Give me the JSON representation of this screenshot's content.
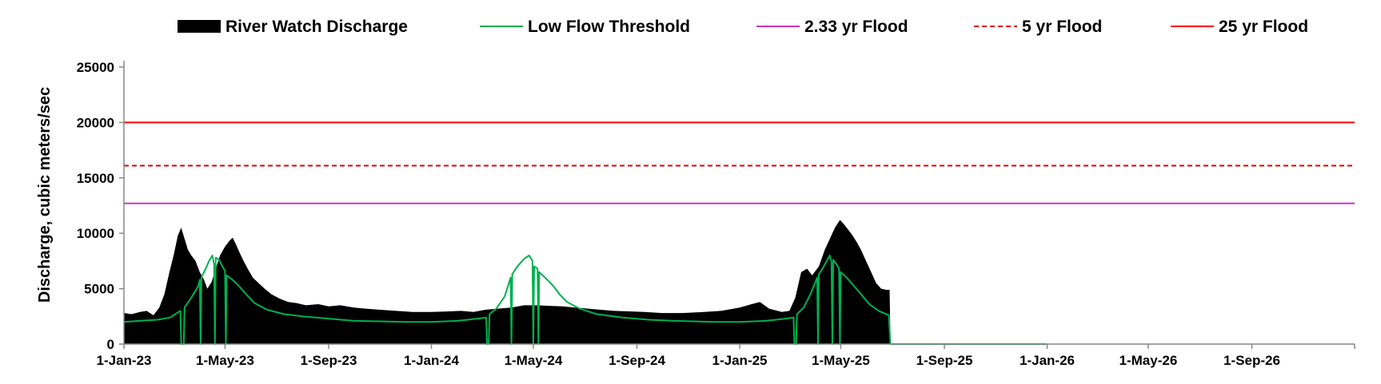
{
  "chart_data": {
    "type": "area",
    "title": "",
    "xlabel": "",
    "ylabel": "Discharge, cubic meters/sec",
    "ylim": [
      0,
      25000
    ],
    "yticks": [
      0,
      5000,
      10000,
      15000,
      20000,
      25000
    ],
    "xlim": [
      "2023-01-01",
      "2027-01-01"
    ],
    "xticks": [
      {
        "date": "2023-01-01",
        "label": "1-Jan-23"
      },
      {
        "date": "2023-05-01",
        "label": "1-May-23"
      },
      {
        "date": "2023-09-01",
        "label": "1-Sep-23"
      },
      {
        "date": "2024-01-01",
        "label": "1-Jan-24"
      },
      {
        "date": "2024-05-01",
        "label": "1-May-24"
      },
      {
        "date": "2024-09-01",
        "label": "1-Sep-24"
      },
      {
        "date": "2025-01-01",
        "label": "1-Jan-25"
      },
      {
        "date": "2025-05-01",
        "label": "1-May-25"
      },
      {
        "date": "2025-09-01",
        "label": "1-Sep-25"
      },
      {
        "date": "2026-01-01",
        "label": "1-Jan-26"
      },
      {
        "date": "2026-05-01",
        "label": "1-May-26"
      },
      {
        "date": "2026-09-01",
        "label": "1-Sep-26"
      }
    ],
    "grid": false,
    "legend_position": "top",
    "series": [
      {
        "name": "River Watch Discharge",
        "kind": "area",
        "color": "#000000",
        "points": [
          [
            "2023-01-01",
            2800
          ],
          [
            "2023-01-10",
            2700
          ],
          [
            "2023-01-20",
            2900
          ],
          [
            "2023-01-28",
            3000
          ],
          [
            "2023-02-05",
            2600
          ],
          [
            "2023-02-12",
            3300
          ],
          [
            "2023-02-18",
            4500
          ],
          [
            "2023-02-24",
            6500
          ],
          [
            "2023-03-01",
            8000
          ],
          [
            "2023-03-06",
            9800
          ],
          [
            "2023-03-10",
            10500
          ],
          [
            "2023-03-14",
            9500
          ],
          [
            "2023-03-18",
            8500
          ],
          [
            "2023-03-22",
            8000
          ],
          [
            "2023-03-27",
            7500
          ],
          [
            "2023-04-01",
            6500
          ],
          [
            "2023-04-06",
            5800
          ],
          [
            "2023-04-10",
            5000
          ],
          [
            "2023-04-15",
            5600
          ],
          [
            "2023-04-20",
            6800
          ],
          [
            "2023-04-25",
            8000
          ],
          [
            "2023-05-01",
            8800
          ],
          [
            "2023-05-06",
            9300
          ],
          [
            "2023-05-10",
            9600
          ],
          [
            "2023-05-14",
            9000
          ],
          [
            "2023-05-18",
            8300
          ],
          [
            "2023-05-23",
            7500
          ],
          [
            "2023-05-28",
            6800
          ],
          [
            "2023-06-03",
            6000
          ],
          [
            "2023-06-10",
            5500
          ],
          [
            "2023-06-17",
            5000
          ],
          [
            "2023-06-25",
            4500
          ],
          [
            "2023-07-05",
            4100
          ],
          [
            "2023-07-15",
            3800
          ],
          [
            "2023-07-25",
            3700
          ],
          [
            "2023-08-05",
            3500
          ],
          [
            "2023-08-20",
            3600
          ],
          [
            "2023-09-01",
            3400
          ],
          [
            "2023-09-15",
            3500
          ],
          [
            "2023-10-01",
            3300
          ],
          [
            "2023-10-15",
            3200
          ],
          [
            "2023-11-01",
            3100
          ],
          [
            "2023-11-20",
            3000
          ],
          [
            "2023-12-10",
            2900
          ],
          [
            "2024-01-01",
            2900
          ],
          [
            "2024-01-20",
            2950
          ],
          [
            "2024-02-05",
            3000
          ],
          [
            "2024-02-20",
            2900
          ],
          [
            "2024-03-05",
            3100
          ],
          [
            "2024-03-20",
            3200
          ],
          [
            "2024-04-05",
            3300
          ],
          [
            "2024-04-20",
            3500
          ],
          [
            "2024-05-05",
            3500
          ],
          [
            "2024-05-20",
            3450
          ],
          [
            "2024-06-05",
            3400
          ],
          [
            "2024-06-20",
            3300
          ],
          [
            "2024-07-05",
            3200
          ],
          [
            "2024-07-20",
            3100
          ],
          [
            "2024-08-05",
            3000
          ],
          [
            "2024-08-25",
            2950
          ],
          [
            "2024-09-10",
            2900
          ],
          [
            "2024-10-01",
            2800
          ],
          [
            "2024-10-25",
            2800
          ],
          [
            "2024-11-20",
            2900
          ],
          [
            "2024-12-10",
            3000
          ],
          [
            "2025-01-01",
            3300
          ],
          [
            "2025-01-15",
            3600
          ],
          [
            "2025-01-25",
            3800
          ],
          [
            "2025-02-05",
            3200
          ],
          [
            "2025-02-20",
            2900
          ],
          [
            "2025-03-01",
            3000
          ],
          [
            "2025-03-08",
            4200
          ],
          [
            "2025-03-15",
            6500
          ],
          [
            "2025-03-22",
            6800
          ],
          [
            "2025-03-28",
            6200
          ],
          [
            "2025-04-05",
            7000
          ],
          [
            "2025-04-12",
            8500
          ],
          [
            "2025-04-18",
            9500
          ],
          [
            "2025-04-24",
            10500
          ],
          [
            "2025-04-30",
            11200
          ],
          [
            "2025-05-05",
            10800
          ],
          [
            "2025-05-10",
            10300
          ],
          [
            "2025-05-15",
            9800
          ],
          [
            "2025-05-20",
            9200
          ],
          [
            "2025-05-25",
            8500
          ],
          [
            "2025-05-31",
            7500
          ],
          [
            "2025-06-06",
            6500
          ],
          [
            "2025-06-12",
            5500
          ],
          [
            "2025-06-18",
            5000
          ],
          [
            "2025-06-24",
            4900
          ],
          [
            "2025-06-28",
            4900
          ],
          [
            "2025-06-29",
            0
          ]
        ]
      },
      {
        "name": "Low Flow Threshold",
        "kind": "line",
        "color": "#00B050",
        "points": [
          [
            "2023-01-01",
            2000
          ],
          [
            "2023-01-20",
            2100
          ],
          [
            "2023-02-10",
            2200
          ],
          [
            "2023-02-25",
            2400
          ],
          [
            "2023-03-05",
            2800
          ],
          [
            "2023-03-09",
            3000
          ],
          [
            "2023-03-10",
            0
          ],
          [
            "2023-03-13",
            0
          ],
          [
            "2023-03-14",
            3300
          ],
          [
            "2023-03-22",
            4200
          ],
          [
            "2023-03-30",
            5200
          ],
          [
            "2023-04-01",
            5800
          ],
          [
            "2023-04-02",
            0
          ],
          [
            "2023-04-03",
            6000
          ],
          [
            "2023-04-08",
            6800
          ],
          [
            "2023-04-12",
            7500
          ],
          [
            "2023-04-16",
            8000
          ],
          [
            "2023-04-18",
            7200
          ],
          [
            "2023-04-19",
            0
          ],
          [
            "2023-04-20",
            7800
          ],
          [
            "2023-04-24",
            7600
          ],
          [
            "2023-04-28",
            7000
          ],
          [
            "2023-05-01",
            6600
          ],
          [
            "2023-05-02",
            0
          ],
          [
            "2023-05-03",
            6200
          ],
          [
            "2023-05-10",
            5800
          ],
          [
            "2023-05-18",
            5200
          ],
          [
            "2023-05-26",
            4500
          ],
          [
            "2023-06-05",
            3700
          ],
          [
            "2023-06-20",
            3100
          ],
          [
            "2023-07-10",
            2700
          ],
          [
            "2023-08-01",
            2500
          ],
          [
            "2023-09-01",
            2300
          ],
          [
            "2023-10-01",
            2100
          ],
          [
            "2023-11-01",
            2050
          ],
          [
            "2023-12-01",
            2000
          ],
          [
            "2024-01-01",
            2000
          ],
          [
            "2024-02-01",
            2100
          ],
          [
            "2024-02-25",
            2300
          ],
          [
            "2024-03-06",
            2400
          ],
          [
            "2024-03-07",
            0
          ],
          [
            "2024-03-09",
            0
          ],
          [
            "2024-03-10",
            2700
          ],
          [
            "2024-03-18",
            3200
          ],
          [
            "2024-03-28",
            4300
          ],
          [
            "2024-04-02",
            5500
          ],
          [
            "2024-04-04",
            6000
          ],
          [
            "2024-04-05",
            0
          ],
          [
            "2024-04-06",
            6300
          ],
          [
            "2024-04-12",
            7000
          ],
          [
            "2024-04-20",
            7700
          ],
          [
            "2024-04-26",
            8000
          ],
          [
            "2024-04-30",
            7500
          ],
          [
            "2024-05-01",
            0
          ],
          [
            "2024-05-02",
            7000
          ],
          [
            "2024-05-06",
            6800
          ],
          [
            "2024-05-07",
            0
          ],
          [
            "2024-05-08",
            6500
          ],
          [
            "2024-05-15",
            6000
          ],
          [
            "2024-05-24",
            5300
          ],
          [
            "2024-06-01",
            4500
          ],
          [
            "2024-06-10",
            3800
          ],
          [
            "2024-06-25",
            3200
          ],
          [
            "2024-07-15",
            2700
          ],
          [
            "2024-08-15",
            2400
          ],
          [
            "2024-09-15",
            2200
          ],
          [
            "2024-10-15",
            2100
          ],
          [
            "2024-12-01",
            2000
          ],
          [
            "2025-01-01",
            2000
          ],
          [
            "2025-02-01",
            2100
          ],
          [
            "2025-02-25",
            2300
          ],
          [
            "2025-03-06",
            2400
          ],
          [
            "2025-03-07",
            0
          ],
          [
            "2025-03-09",
            0
          ],
          [
            "2025-03-10",
            2700
          ],
          [
            "2025-03-18",
            3300
          ],
          [
            "2025-03-26",
            4500
          ],
          [
            "2025-04-01",
            5600
          ],
          [
            "2025-04-03",
            6000
          ],
          [
            "2025-04-04",
            0
          ],
          [
            "2025-04-05",
            6300
          ],
          [
            "2025-04-10",
            6900
          ],
          [
            "2025-04-15",
            7600
          ],
          [
            "2025-04-18",
            8000
          ],
          [
            "2025-04-20",
            7400
          ],
          [
            "2025-04-21",
            0
          ],
          [
            "2025-04-22",
            7600
          ],
          [
            "2025-04-26",
            7200
          ],
          [
            "2025-04-29",
            6800
          ],
          [
            "2025-04-30",
            0
          ],
          [
            "2025-05-01",
            6500
          ],
          [
            "2025-05-08",
            6000
          ],
          [
            "2025-05-16",
            5300
          ],
          [
            "2025-05-25",
            4500
          ],
          [
            "2025-06-04",
            3600
          ],
          [
            "2025-06-15",
            3000
          ],
          [
            "2025-06-27",
            2600
          ],
          [
            "2025-06-29",
            0
          ],
          [
            "2025-12-31",
            0
          ]
        ]
      },
      {
        "name": "2.33 yr Flood",
        "kind": "hline",
        "color": "#CC33CC",
        "dash": false,
        "value": 12700
      },
      {
        "name": "5 yr Flood",
        "kind": "hline",
        "color": "#E00000",
        "dash": true,
        "value": 16100
      },
      {
        "name": "25 yr Flood",
        "kind": "hline",
        "color": "#FF0000",
        "dash": false,
        "value": 20000
      }
    ]
  }
}
